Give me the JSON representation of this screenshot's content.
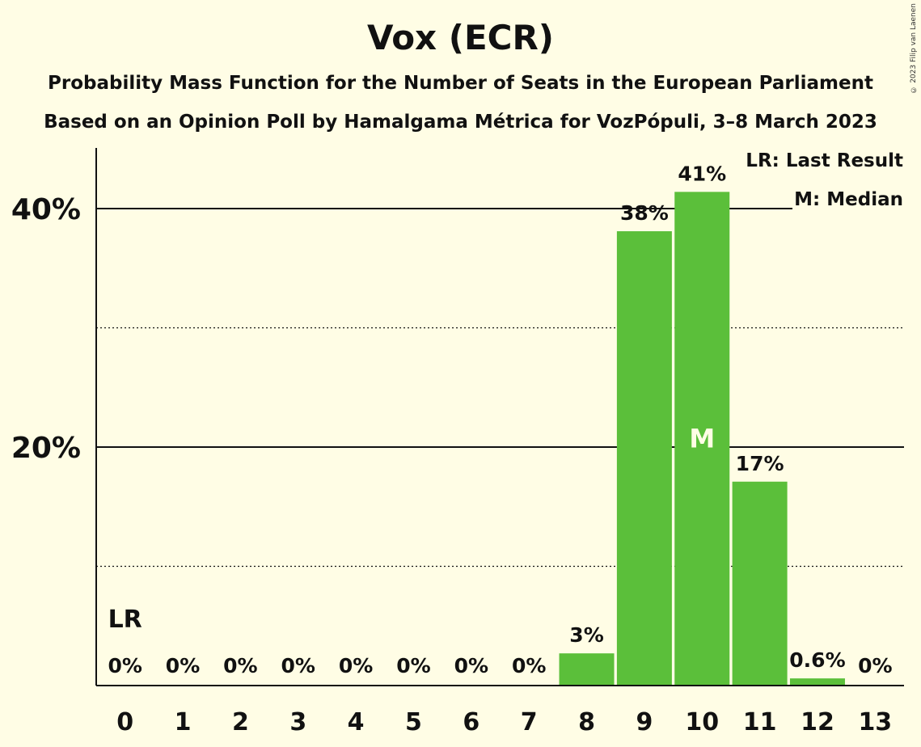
{
  "header": {
    "title": "Vox (ECR)",
    "subtitle1": "Probability Mass Function for the Number of Seats in the European Parliament",
    "subtitle2": "Based on an Opinion Poll by Hamalgama Métrica for VozPópuli, 3–8 March 2023",
    "copyright": "© 2023 Filip van Laenen"
  },
  "legend": {
    "lr": "LR: Last Result",
    "median": "M: Median"
  },
  "colors": {
    "bar": "#5bbf3a",
    "background": "#fffde5"
  },
  "chart_data": {
    "type": "bar",
    "categories": [
      "0",
      "1",
      "2",
      "3",
      "4",
      "5",
      "6",
      "7",
      "8",
      "9",
      "10",
      "11",
      "12",
      "13"
    ],
    "values": [
      0,
      0,
      0,
      0,
      0,
      0,
      0,
      0,
      2.7,
      38.1,
      41.4,
      17.1,
      0.6,
      0
    ],
    "labels": [
      "0%",
      "0%",
      "0%",
      "0%",
      "0%",
      "0%",
      "0%",
      "0%",
      "3%",
      "38%",
      "41%",
      "17%",
      "0.6%",
      "0%"
    ],
    "ylim": [
      0,
      45
    ],
    "yticks": [
      {
        "value": 20,
        "label": "20%"
      },
      {
        "value": 40,
        "label": "40%"
      }
    ],
    "minor_gridlines": [
      10,
      30
    ],
    "last_result_index": 0,
    "last_result_label": "LR",
    "median_index": 10,
    "median_label": "M"
  }
}
